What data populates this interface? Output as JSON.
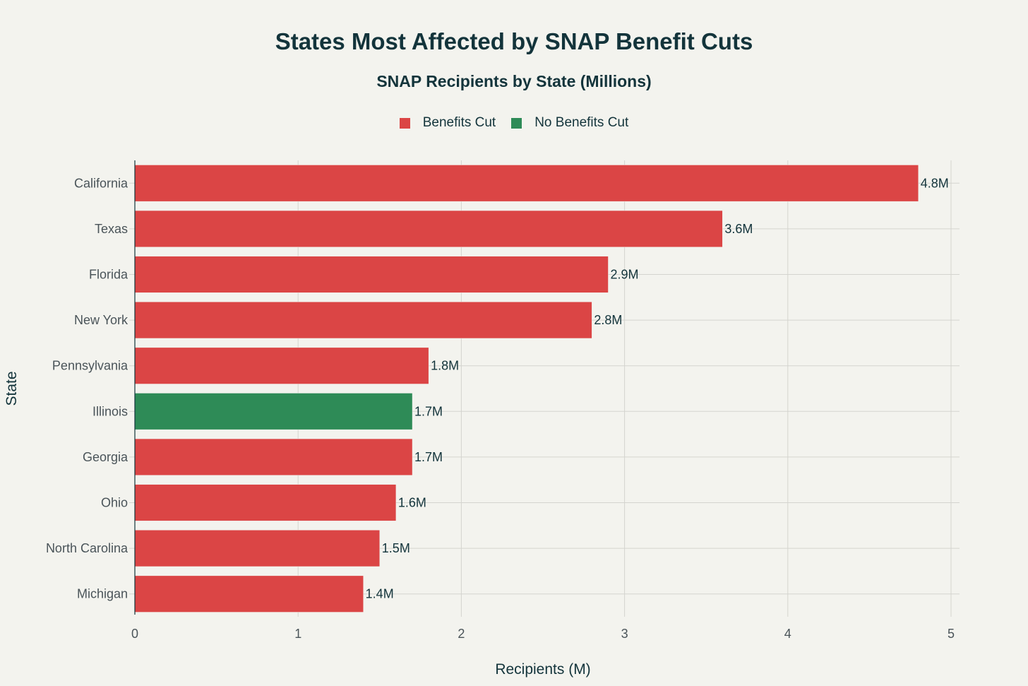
{
  "chart_data": {
    "type": "bar",
    "orientation": "horizontal",
    "title": "States Most Affected by SNAP Benefit Cuts",
    "subtitle": "SNAP Recipients by State (Millions)",
    "xlabel": "Recipients (M)",
    "ylabel": "State",
    "xlim": [
      0,
      5
    ],
    "xticks": [
      "0",
      "1",
      "2",
      "3",
      "4",
      "5"
    ],
    "grid": true,
    "legend_placement": "top-center",
    "legend": [
      {
        "name": "Benefits Cut",
        "color": "#DB4545"
      },
      {
        "name": "No Benefits Cut",
        "color": "#2E8B57"
      }
    ],
    "categories": [
      "California",
      "Texas",
      "Florida",
      "New York",
      "Pennsylvania",
      "Illinois",
      "Georgia",
      "Ohio",
      "North Carolina",
      "Michigan"
    ],
    "values": [
      4.8,
      3.6,
      2.9,
      2.8,
      1.8,
      1.7,
      1.7,
      1.6,
      1.5,
      1.4
    ],
    "groups": [
      "Benefits Cut",
      "Benefits Cut",
      "Benefits Cut",
      "Benefits Cut",
      "Benefits Cut",
      "No Benefits Cut",
      "Benefits Cut",
      "Benefits Cut",
      "Benefits Cut",
      "Benefits Cut"
    ],
    "data_labels": [
      "4.8M",
      "3.6M",
      "2.9M",
      "2.8M",
      "1.8M",
      "1.7M",
      "1.7M",
      "1.6M",
      "1.5M",
      "1.4M"
    ]
  }
}
